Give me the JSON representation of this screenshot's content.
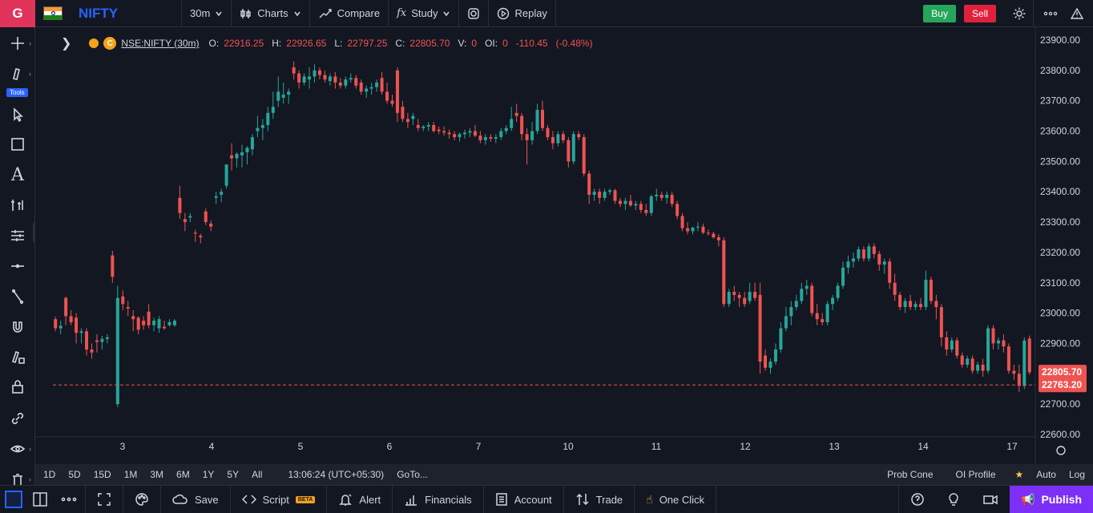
{
  "topbar": {
    "logo": "G",
    "symbol": "NIFTY",
    "interval": "30m",
    "charts_label": "Charts",
    "compare_label": "Compare",
    "study_label": "Study",
    "replay_label": "Replay",
    "buy_label": "Buy",
    "sell_label": "Sell"
  },
  "left_toolbar": {
    "tools_badge": "Tools"
  },
  "legend": {
    "ticker": "NSE:NIFTY (30m)",
    "coin_letter": "C",
    "o_label": "O:",
    "o_value": "22916.25",
    "h_label": "H:",
    "h_value": "22926.65",
    "l_label": "L:",
    "l_value": "22797.25",
    "c_label": "C:",
    "c_value": "22805.70",
    "v_label": "V:",
    "v_value": "0",
    "oi_label": "OI:",
    "oi_value": "0",
    "change": "-110.45",
    "change_pct": "(-0.48%)"
  },
  "chart_data": {
    "type": "candlestick",
    "y_ticks": [
      "23900.00",
      "23800.00",
      "23700.00",
      "23600.00",
      "23500.00",
      "23400.00",
      "23300.00",
      "23200.00",
      "23100.00",
      "23000.00",
      "22900.00",
      "22800.00",
      "22700.00",
      "22600.00"
    ],
    "ylim": [
      22600,
      23900
    ],
    "x_ticks": [
      "3",
      "4",
      "5",
      "6",
      "7",
      "10",
      "11",
      "12",
      "13",
      "14",
      "17"
    ],
    "last_price_label": "22805.70",
    "crosshair_price_label": "22763.20",
    "crosshair_price": 22763.2,
    "colors": {
      "up": "#26a69a",
      "down": "#ef5350"
    },
    "candles": [
      [
        22980,
        22988,
        22940,
        22950
      ],
      [
        22950,
        22975,
        22930,
        22958
      ],
      [
        23050,
        23055,
        22960,
        22990
      ],
      [
        22990,
        23010,
        22960,
        22970
      ],
      [
        22985,
        23000,
        22900,
        22935
      ],
      [
        22935,
        22950,
        22900,
        22940
      ],
      [
        22940,
        22950,
        22860,
        22880
      ],
      [
        22880,
        22900,
        22850,
        22870
      ],
      [
        22910,
        22930,
        22870,
        22905
      ],
      [
        22905,
        22925,
        22880,
        22915
      ],
      [
        22915,
        22930,
        22900,
        22920
      ],
      [
        23190,
        23205,
        23100,
        23120
      ],
      [
        22700,
        23090,
        22690,
        23050
      ],
      [
        23055,
        23075,
        23010,
        23030
      ],
      [
        23020,
        23040,
        22990,
        23015
      ],
      [
        22990,
        23010,
        22940,
        22980
      ],
      [
        22985,
        22990,
        22930,
        22945
      ],
      [
        22975,
        22990,
        22945,
        22960
      ],
      [
        23005,
        23030,
        22950,
        22960
      ],
      [
        22960,
        22985,
        22940,
        22975
      ],
      [
        22950,
        22990,
        22935,
        22980
      ],
      [
        22955,
        22975,
        22945,
        22950
      ],
      [
        22960,
        22980,
        22955,
        22970
      ],
      [
        22960,
        22980,
        22955,
        22975
      ],
      [
        23380,
        23420,
        23310,
        23330
      ],
      [
        23310,
        23330,
        23270,
        23300
      ],
      [
        23315,
        23330,
        23300,
        23320
      ],
      [
        23265,
        23275,
        23235,
        23262
      ],
      [
        23255,
        23262,
        23230,
        23250
      ],
      [
        23335,
        23345,
        23290,
        23300
      ],
      [
        23295,
        23305,
        23270,
        23285
      ],
      [
        23380,
        23400,
        23360,
        23385
      ],
      [
        23390,
        23410,
        23365,
        23400
      ],
      [
        23420,
        23490,
        23410,
        23490
      ],
      [
        23520,
        23560,
        23470,
        23510
      ],
      [
        23510,
        23530,
        23480,
        23525
      ],
      [
        23520,
        23555,
        23480,
        23530
      ],
      [
        23530,
        23550,
        23490,
        23545
      ],
      [
        23540,
        23590,
        23520,
        23580
      ],
      [
        23600,
        23650,
        23580,
        23610
      ],
      [
        23610,
        23640,
        23570,
        23620
      ],
      [
        23620,
        23680,
        23600,
        23660
      ],
      [
        23660,
        23730,
        23640,
        23680
      ],
      [
        23700,
        23780,
        23680,
        23730
      ],
      [
        23710,
        23760,
        23690,
        23720
      ],
      [
        23720,
        23740,
        23690,
        23730
      ],
      [
        23810,
        23830,
        23770,
        23790
      ],
      [
        23790,
        23800,
        23740,
        23760
      ],
      [
        23760,
        23790,
        23750,
        23780
      ],
      [
        23770,
        23810,
        23740,
        23780
      ],
      [
        23780,
        23820,
        23760,
        23800
      ],
      [
        23800,
        23810,
        23770,
        23785
      ],
      [
        23785,
        23800,
        23760,
        23770
      ],
      [
        23765,
        23790,
        23750,
        23780
      ],
      [
        23780,
        23795,
        23740,
        23760
      ],
      [
        23760,
        23775,
        23740,
        23750
      ],
      [
        23750,
        23780,
        23740,
        23770
      ],
      [
        23770,
        23790,
        23760,
        23775
      ],
      [
        23775,
        23785,
        23740,
        23750
      ],
      [
        23760,
        23770,
        23720,
        23730
      ],
      [
        23730,
        23750,
        23710,
        23740
      ],
      [
        23740,
        23760,
        23720,
        23745
      ],
      [
        23745,
        23770,
        23730,
        23760
      ],
      [
        23775,
        23795,
        23720,
        23730
      ],
      [
        23730,
        23760,
        23690,
        23700
      ],
      [
        23700,
        23720,
        23680,
        23690
      ],
      [
        23800,
        23810,
        23630,
        23660
      ],
      [
        23680,
        23700,
        23630,
        23640
      ],
      [
        23640,
        23660,
        23610,
        23630
      ],
      [
        23640,
        23660,
        23620,
        23650
      ],
      [
        23620,
        23640,
        23600,
        23610
      ],
      [
        23610,
        23620,
        23600,
        23615
      ],
      [
        23615,
        23630,
        23600,
        23620
      ],
      [
        23620,
        23630,
        23595,
        23600
      ],
      [
        23605,
        23615,
        23590,
        23600
      ],
      [
        23600,
        23615,
        23585,
        23595
      ],
      [
        23595,
        23605,
        23575,
        23590
      ],
      [
        23590,
        23600,
        23570,
        23580
      ],
      [
        23580,
        23595,
        23565,
        23590
      ],
      [
        23590,
        23605,
        23575,
        23595
      ],
      [
        23595,
        23610,
        23580,
        23600
      ],
      [
        23600,
        23620,
        23580,
        23585
      ],
      [
        23585,
        23600,
        23560,
        23570
      ],
      [
        23570,
        23590,
        23555,
        23580
      ],
      [
        23580,
        23590,
        23565,
        23575
      ],
      [
        23575,
        23590,
        23560,
        23580
      ],
      [
        23580,
        23610,
        23570,
        23600
      ],
      [
        23600,
        23620,
        23590,
        23610
      ],
      [
        23610,
        23680,
        23600,
        23640
      ],
      [
        23660,
        23690,
        23630,
        23650
      ],
      [
        23650,
        23660,
        23570,
        23590
      ],
      [
        23590,
        23610,
        23490,
        23570
      ],
      [
        23570,
        23630,
        23555,
        23600
      ],
      [
        23600,
        23690,
        23590,
        23670
      ],
      [
        23670,
        23700,
        23600,
        23610
      ],
      [
        23610,
        23620,
        23570,
        23580
      ],
      [
        23580,
        23600,
        23540,
        23560
      ],
      [
        23560,
        23600,
        23550,
        23590
      ],
      [
        23590,
        23600,
        23560,
        23570
      ],
      [
        23570,
        23580,
        23480,
        23500
      ],
      [
        23500,
        23600,
        23490,
        23590
      ],
      [
        23590,
        23600,
        23570,
        23580
      ],
      [
        23580,
        23590,
        23450,
        23460
      ],
      [
        23460,
        23470,
        23360,
        23390
      ],
      [
        23390,
        23410,
        23370,
        23400
      ],
      [
        23400,
        23410,
        23360,
        23380
      ],
      [
        23380,
        23410,
        23370,
        23400
      ],
      [
        23400,
        23410,
        23390,
        23405
      ],
      [
        23405,
        23410,
        23360,
        23370
      ],
      [
        23370,
        23380,
        23350,
        23360
      ],
      [
        23360,
        23380,
        23340,
        23370
      ],
      [
        23370,
        23390,
        23350,
        23355
      ],
      [
        23355,
        23370,
        23340,
        23360
      ],
      [
        23360,
        23370,
        23330,
        23340
      ],
      [
        23340,
        23360,
        23320,
        23330
      ],
      [
        23330,
        23390,
        23320,
        23385
      ],
      [
        23385,
        23410,
        23370,
        23390
      ],
      [
        23390,
        23400,
        23370,
        23380
      ],
      [
        23380,
        23400,
        23360,
        23390
      ],
      [
        23390,
        23400,
        23350,
        23360
      ],
      [
        23360,
        23370,
        23310,
        23320
      ],
      [
        23320,
        23330,
        23270,
        23280
      ],
      [
        23280,
        23300,
        23260,
        23270
      ],
      [
        23270,
        23285,
        23260,
        23282
      ],
      [
        23282,
        23300,
        23270,
        23285
      ],
      [
        23285,
        23295,
        23260,
        23265
      ],
      [
        23265,
        23275,
        23255,
        23262
      ],
      [
        23262,
        23268,
        23245,
        23250
      ],
      [
        23250,
        23260,
        23220,
        23240
      ],
      [
        23240,
        23250,
        23020,
        23030
      ],
      [
        23030,
        23080,
        23020,
        23070
      ],
      [
        23070,
        23090,
        23040,
        23060
      ],
      [
        23060,
        23070,
        23020,
        23050
      ],
      [
        23050,
        23070,
        23020,
        23030
      ],
      [
        23040,
        23100,
        23030,
        23070
      ],
      [
        23070,
        23100,
        23040,
        23050
      ],
      [
        23060,
        23100,
        22800,
        22840
      ],
      [
        22860,
        22880,
        22810,
        22820
      ],
      [
        22820,
        22850,
        22800,
        22840
      ],
      [
        22840,
        22900,
        22830,
        22880
      ],
      [
        22880,
        22970,
        22870,
        22950
      ],
      [
        22950,
        23020,
        22940,
        22990
      ],
      [
        22990,
        23040,
        22960,
        23020
      ],
      [
        23020,
        23060,
        23010,
        23040
      ],
      [
        23040,
        23100,
        23030,
        23080
      ],
      [
        23080,
        23110,
        23060,
        23090
      ],
      [
        23090,
        23100,
        22990,
        23000
      ],
      [
        23000,
        23030,
        22960,
        22980
      ],
      [
        22980,
        23000,
        22960,
        22970
      ],
      [
        22970,
        23040,
        22960,
        23030
      ],
      [
        23030,
        23060,
        23010,
        23050
      ],
      [
        23050,
        23100,
        23040,
        23090
      ],
      [
        23090,
        23170,
        23080,
        23150
      ],
      [
        23150,
        23190,
        23130,
        23170
      ],
      [
        23170,
        23200,
        23150,
        23180
      ],
      [
        23180,
        23220,
        23170,
        23210
      ],
      [
        23210,
        23220,
        23170,
        23180
      ],
      [
        23180,
        23230,
        23170,
        23220
      ],
      [
        23220,
        23230,
        23180,
        23195
      ],
      [
        23195,
        23205,
        23140,
        23160
      ],
      [
        23160,
        23180,
        23130,
        23170
      ],
      [
        23170,
        23180,
        23080,
        23100
      ],
      [
        23100,
        23130,
        23040,
        23060
      ],
      [
        23060,
        23070,
        23010,
        23020
      ],
      [
        23020,
        23050,
        23000,
        23040
      ],
      [
        23040,
        23060,
        23010,
        23020
      ],
      [
        23020,
        23040,
        23010,
        23030
      ],
      [
        23030,
        23050,
        23010,
        23020
      ],
      [
        23020,
        23140,
        23010,
        23110
      ],
      [
        23110,
        23120,
        23030,
        23040
      ],
      [
        23040,
        23060,
        22980,
        23020
      ],
      [
        23020,
        23030,
        22890,
        22920
      ],
      [
        22920,
        22940,
        22860,
        22880
      ],
      [
        22880,
        22920,
        22870,
        22910
      ],
      [
        22910,
        22920,
        22850,
        22860
      ],
      [
        22860,
        22870,
        22820,
        22830
      ],
      [
        22830,
        22860,
        22820,
        22850
      ],
      [
        22850,
        22860,
        22800,
        22810
      ],
      [
        22810,
        22840,
        22800,
        22830
      ],
      [
        22830,
        22850,
        22790,
        22810
      ],
      [
        22810,
        22960,
        22800,
        22950
      ],
      [
        22950,
        22960,
        22880,
        22900
      ],
      [
        22900,
        22920,
        22880,
        22910
      ],
      [
        22910,
        22930,
        22870,
        22890
      ],
      [
        22890,
        22900,
        22800,
        22810
      ],
      [
        22810,
        22830,
        22780,
        22800
      ],
      [
        22800,
        22830,
        22740,
        22760
      ],
      [
        22760,
        22920,
        22750,
        22910
      ],
      [
        22916,
        22926,
        22797,
        22805
      ]
    ]
  },
  "range_bar": {
    "ranges": [
      "1D",
      "5D",
      "15D",
      "1M",
      "3M",
      "6M",
      "1Y",
      "5Y",
      "All"
    ],
    "time": "13:06:24 (UTC+05:30)",
    "goto": "GoTo...",
    "prob_cone": "Prob Cone",
    "oi_profile": "OI Profile",
    "auto": "Auto",
    "log": "Log"
  },
  "bottom_bar": {
    "save": "Save",
    "script": "Script",
    "beta": "BETA",
    "alert": "Alert",
    "financials": "Financials",
    "account": "Account",
    "trade": "Trade",
    "one_click": "One Click",
    "publish": "Publish"
  }
}
